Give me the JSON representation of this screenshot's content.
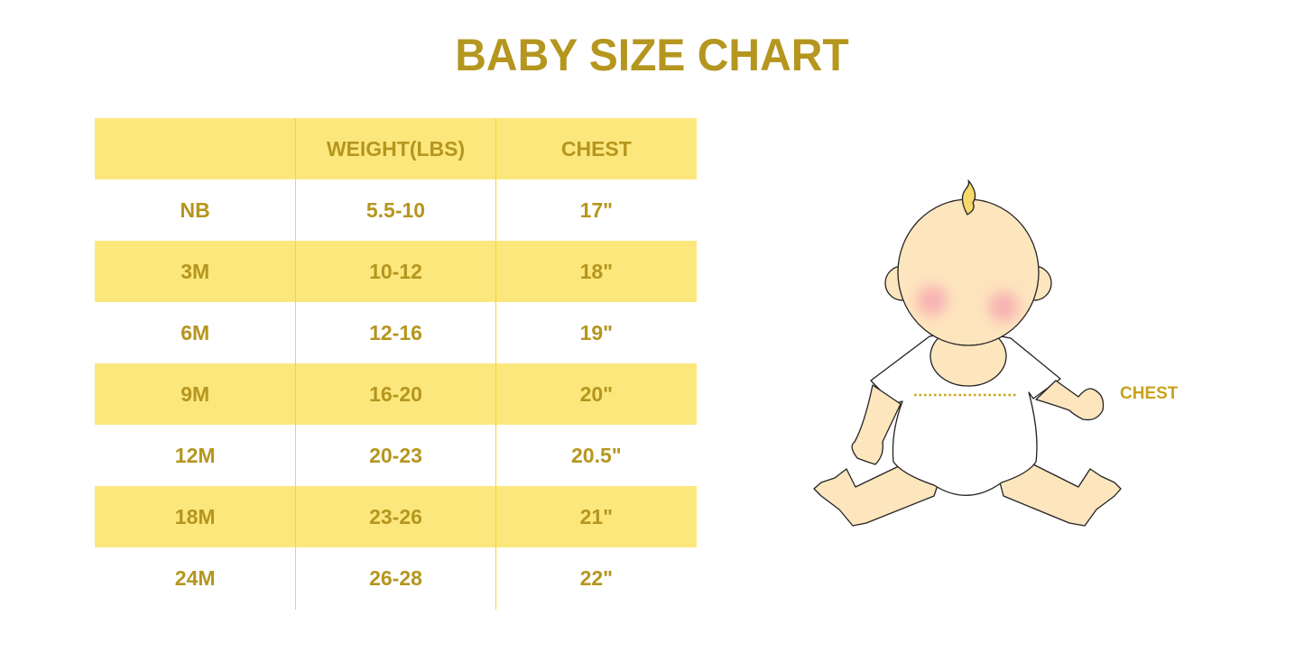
{
  "title": "BABY SIZE CHART",
  "table": {
    "headers": [
      "",
      "WEIGHT(LBS)",
      "CHEST"
    ],
    "rows": [
      [
        "NB",
        "5.5-10",
        "17\""
      ],
      [
        "3M",
        "10-12",
        "18\""
      ],
      [
        "6M",
        "12-16",
        "19\""
      ],
      [
        "9M",
        "16-20",
        "20\""
      ],
      [
        "12M",
        "20-23",
        "20.5\""
      ],
      [
        "18M",
        "23-26",
        "21\""
      ],
      [
        "24M",
        "26-28",
        "22\""
      ]
    ]
  },
  "illustration": {
    "chest_label": "CHEST"
  },
  "colors": {
    "text": "#B5961E",
    "stripe": "#FCE77D",
    "divider": "#F9D62E",
    "skin": "#FDE5BE",
    "measure": "#C9A21C"
  }
}
